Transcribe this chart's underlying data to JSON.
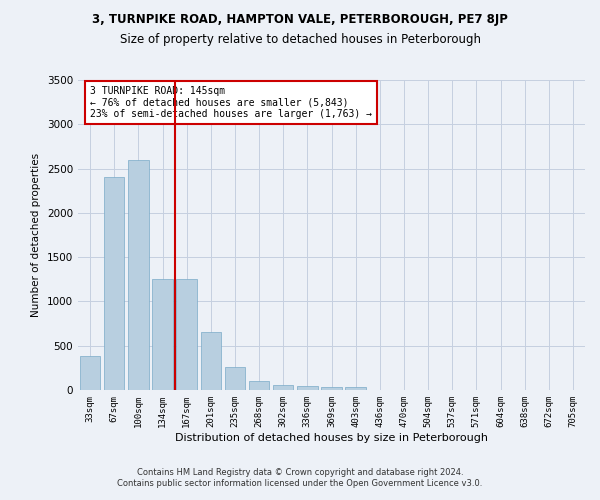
{
  "title1": "3, TURNPIKE ROAD, HAMPTON VALE, PETERBOROUGH, PE7 8JP",
  "title2": "Size of property relative to detached houses in Peterborough",
  "xlabel": "Distribution of detached houses by size in Peterborough",
  "ylabel": "Number of detached properties",
  "categories": [
    "33sqm",
    "67sqm",
    "100sqm",
    "134sqm",
    "167sqm",
    "201sqm",
    "235sqm",
    "268sqm",
    "302sqm",
    "336sqm",
    "369sqm",
    "403sqm",
    "436sqm",
    "470sqm",
    "504sqm",
    "537sqm",
    "571sqm",
    "604sqm",
    "638sqm",
    "672sqm",
    "705sqm"
  ],
  "values": [
    380,
    2400,
    2600,
    1250,
    1250,
    650,
    260,
    100,
    55,
    40,
    30,
    30,
    0,
    0,
    0,
    0,
    0,
    0,
    0,
    0,
    0
  ],
  "bar_color": "#b8cfe0",
  "bar_edge_color": "#7aaac8",
  "vline_color": "#cc0000",
  "annotation_text": "3 TURNPIKE ROAD: 145sqm\n← 76% of detached houses are smaller (5,843)\n23% of semi-detached houses are larger (1,763) →",
  "annotation_box_color": "#ffffff",
  "annotation_box_edge_color": "#cc0000",
  "ylim": [
    0,
    3500
  ],
  "yticks": [
    0,
    500,
    1000,
    1500,
    2000,
    2500,
    3000,
    3500
  ],
  "footer_line1": "Contains HM Land Registry data © Crown copyright and database right 2024.",
  "footer_line2": "Contains public sector information licensed under the Open Government Licence v3.0.",
  "bg_color": "#edf1f7",
  "plot_bg_color": "#edf1f7",
  "grid_color": "#c5cfe0"
}
